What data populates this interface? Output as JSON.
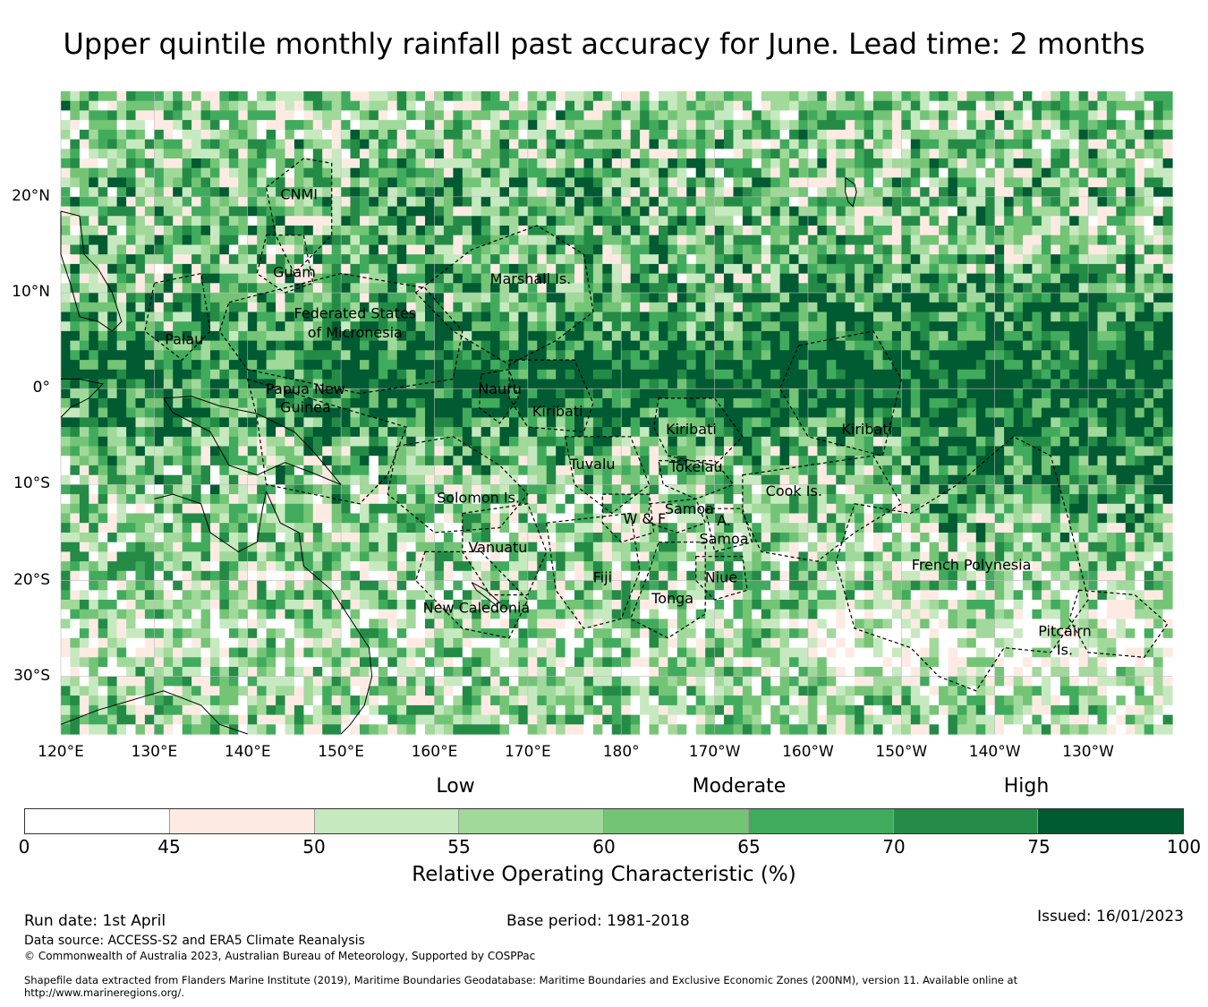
{
  "title": "Upper quintile monthly rainfall past accuracy for June. Lead time: 2 months",
  "map": {
    "lon_range": [
      120,
      239
    ],
    "lat_range": [
      -36,
      31
    ],
    "lat_ticks": [
      {
        "lat": 20,
        "label": "20°N"
      },
      {
        "lat": 10,
        "label": "10°N"
      },
      {
        "lat": 0,
        "label": "0°"
      },
      {
        "lat": -10,
        "label": "10°S"
      },
      {
        "lat": -20,
        "label": "20°S"
      },
      {
        "lat": -30,
        "label": "30°S"
      }
    ],
    "lon_ticks": [
      {
        "lon": 120,
        "label": "120°E"
      },
      {
        "lon": 130,
        "label": "130°E"
      },
      {
        "lon": 140,
        "label": "140°E"
      },
      {
        "lon": 150,
        "label": "150°E"
      },
      {
        "lon": 160,
        "label": "160°E"
      },
      {
        "lon": 170,
        "label": "170°E"
      },
      {
        "lon": 180,
        "label": "180°"
      },
      {
        "lon": 190,
        "label": "170°W"
      },
      {
        "lon": 200,
        "label": "160°W"
      },
      {
        "lon": 210,
        "label": "150°W"
      },
      {
        "lon": 220,
        "label": "140°W"
      },
      {
        "lon": 230,
        "label": "130°W"
      }
    ],
    "regions": [
      {
        "name": "CNMI",
        "lon": 145.5,
        "lat": 20.3
      },
      {
        "name": "Guam",
        "lon": 145.0,
        "lat": 12.2
      },
      {
        "name": "Marshall Is.",
        "lon": 170.3,
        "lat": 11.5
      },
      {
        "name": "Federated States",
        "lon": 151.5,
        "lat": 7.9
      },
      {
        "name": "of Micronesia",
        "lon": 151.5,
        "lat": 5.9
      },
      {
        "name": "Palau",
        "lon": 133.2,
        "lat": 5.2
      },
      {
        "name": "Papua New",
        "lon": 146.2,
        "lat": 0.0
      },
      {
        "name": "Guinea",
        "lon": 146.2,
        "lat": -1.9
      },
      {
        "name": "Nauru",
        "lon": 167.0,
        "lat": 0.0
      },
      {
        "name": "Kiribati",
        "lon": 173.2,
        "lat": -2.3
      },
      {
        "name": "Kiribati",
        "lon": 187.5,
        "lat": -4.2
      },
      {
        "name": "Kiribati",
        "lon": 206.3,
        "lat": -4.2
      },
      {
        "name": "Tuvalu",
        "lon": 176.9,
        "lat": -7.8
      },
      {
        "name": "Tokelau",
        "lon": 188.0,
        "lat": -8.1
      },
      {
        "name": "Cook Is.",
        "lon": 198.5,
        "lat": -10.6
      },
      {
        "name": "Solomon Is.",
        "lon": 164.7,
        "lat": -11.3
      },
      {
        "name": "Samoa",
        "lon": 187.3,
        "lat": -12.5
      },
      {
        "name": "A.",
        "lon": 191.0,
        "lat": -13.7
      },
      {
        "name": "W & F",
        "lon": 182.5,
        "lat": -13.5
      },
      {
        "name": "Samoa",
        "lon": 191.0,
        "lat": -15.6
      },
      {
        "name": "Vanuatu",
        "lon": 166.8,
        "lat": -16.5
      },
      {
        "name": "Fiji",
        "lon": 178.0,
        "lat": -19.6
      },
      {
        "name": "Niue",
        "lon": 190.7,
        "lat": -19.6
      },
      {
        "name": "Tonga",
        "lon": 185.5,
        "lat": -21.8
      },
      {
        "name": "French Polynesia",
        "lon": 217.5,
        "lat": -18.3
      },
      {
        "name": "New Caledonia",
        "lon": 164.5,
        "lat": -22.8
      },
      {
        "name": "Pitcairn",
        "lon": 227.5,
        "lat": -25.2
      },
      {
        "name": "Is.",
        "lon": 227.5,
        "lat": -27.2
      }
    ]
  },
  "colorbar": {
    "categories": [
      "Low",
      "Moderate",
      "High"
    ],
    "boundaries": [
      0,
      45,
      50,
      55,
      60,
      65,
      70,
      75,
      100
    ],
    "colors": [
      "#ffffff",
      "#fdebe3",
      "#c7e9c0",
      "#a1d99b",
      "#74c476",
      "#41ab5d",
      "#238b45",
      "#005a32"
    ],
    "label": "Relative Operating Characteristic (%)"
  },
  "footer": {
    "run_date": "Run date: 1st April",
    "base_period": "Base period: 1981-2018",
    "issued": "Issued: 16/01/2023",
    "data_source": "Data source: ACCESS-S2 and ERA5 Climate Reanalysis",
    "copyright": "© Commonwealth of Australia 2023, Australian Bureau of Meteorology, Supported by COSPPac",
    "shapefile_line1": "Shapefile data extracted from Flanders Marine Institute (2019), Maritime Boundaries Geodatabase: Maritime Boundaries and Exclusive Economic Zones (200NM), version 11. Available online at",
    "shapefile_line2": "http://www.marineregions.org/."
  }
}
